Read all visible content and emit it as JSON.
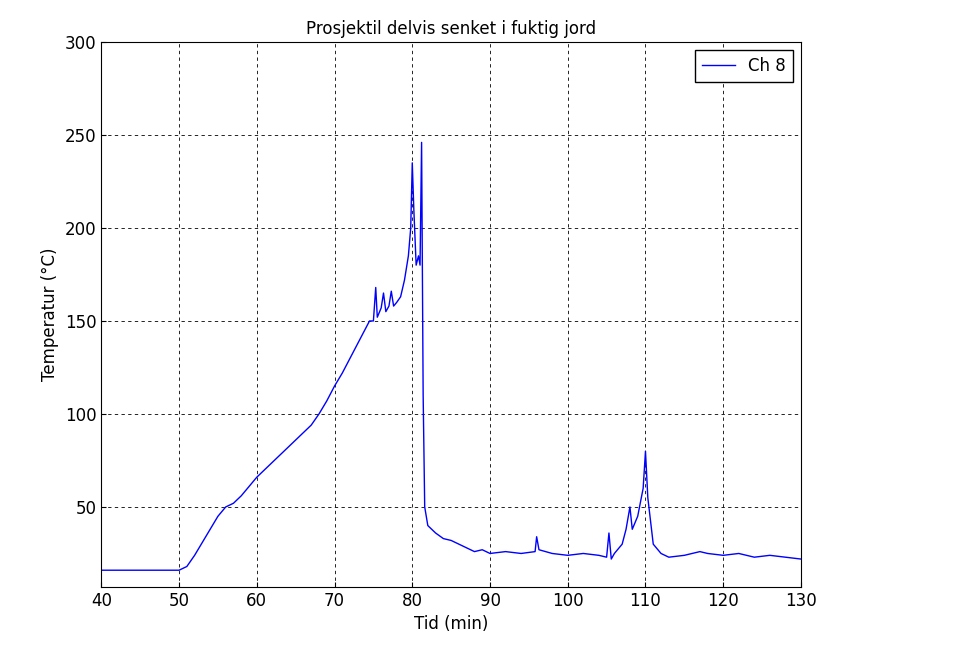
{
  "chart_data": {
    "type": "line",
    "title": "Prosjektil delvis senket i fuktig jord",
    "x_label": "Tid (min)",
    "y_label": "Temperatur (°C)",
    "series": [
      {
        "name": "Ch 8",
        "color": "#0000ff",
        "line_style": "solid",
        "x": [
          40,
          45,
          50,
          51,
          52,
          53,
          54,
          55,
          56,
          57,
          58,
          59,
          60,
          61,
          62,
          63,
          64,
          65,
          66,
          67,
          68,
          69,
          70,
          71,
          72,
          73,
          74,
          74.5,
          75,
          75.3,
          75.5,
          76,
          76.3,
          76.6,
          77,
          77.3,
          77.6,
          78,
          78.5,
          79,
          79.5,
          79.8,
          80,
          80.2,
          80.5,
          80.8,
          81,
          81.2,
          81.4,
          81.6,
          82,
          83,
          84,
          85,
          86,
          87,
          88,
          89,
          90,
          92,
          94,
          95.8,
          96,
          96.3,
          98,
          100,
          102,
          104,
          105,
          105.3,
          105.6,
          106,
          107,
          107.5,
          108,
          108.3,
          109,
          109.7,
          110,
          110.3,
          111,
          112,
          113,
          115,
          117,
          118,
          120,
          122,
          124,
          126,
          128,
          130
        ],
        "values": [
          16,
          16,
          16,
          18,
          24,
          31,
          38,
          45,
          50,
          52,
          56,
          61,
          66,
          70,
          74,
          78,
          82,
          86,
          90,
          94,
          100,
          107,
          115,
          122,
          130,
          138,
          146,
          150,
          150,
          168,
          152,
          157,
          165,
          155,
          158,
          166,
          158,
          160,
          163,
          172,
          185,
          200,
          235,
          210,
          180,
          185,
          180,
          246,
          110,
          50,
          40,
          36,
          33,
          32,
          30,
          28,
          26,
          27,
          25,
          26,
          25,
          26,
          34,
          27,
          25,
          24,
          25,
          24,
          23,
          36,
          22,
          25,
          30,
          38,
          50,
          38,
          45,
          60,
          80,
          55,
          30,
          25,
          23,
          24,
          26,
          25,
          24,
          25,
          23,
          24,
          23,
          22
        ]
      }
    ],
    "xlim": [
      40,
      130
    ],
    "xticks": [
      40,
      50,
      60,
      70,
      80,
      90,
      100,
      110,
      120,
      130
    ],
    "ylim": [
      7,
      300
    ],
    "yticks": [
      50,
      100,
      150,
      200,
      250,
      300
    ],
    "grid": true,
    "legend": "upper right"
  }
}
